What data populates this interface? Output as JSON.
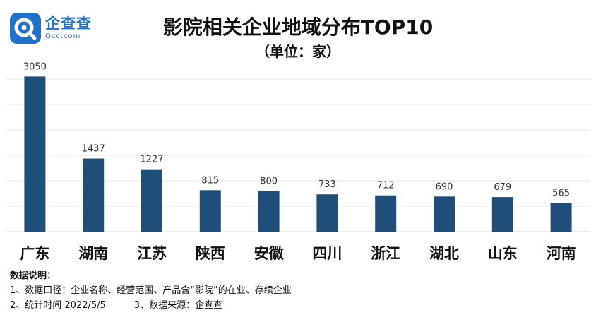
{
  "logo": {
    "name_cn": "企查查",
    "name_en": "Qcc.com"
  },
  "title": "影院相关企业地域分布TOP10",
  "subtitle": "（单位：家）",
  "chart_data": {
    "type": "bar",
    "title": "影院相关企业地域分布TOP10",
    "subtitle": "（单位：家）",
    "categories": [
      "广东",
      "湖南",
      "江苏",
      "陕西",
      "安徽",
      "四川",
      "浙江",
      "湖北",
      "山东",
      "河南"
    ],
    "values": [
      3050,
      1437,
      1227,
      815,
      800,
      733,
      712,
      690,
      679,
      565
    ],
    "ylim": [
      0,
      3250
    ],
    "grid": true,
    "bar_color": "#1f4e79",
    "grid_color": "#e6e6e6"
  },
  "notes": {
    "heading": "数据说明：",
    "line1": "1、数据口径：企业名称、经营范围、产品含“影院”的在业、存续企业",
    "line2": "2、统计时间 2022/5/5",
    "line3": "3、数据来源：企查查"
  }
}
